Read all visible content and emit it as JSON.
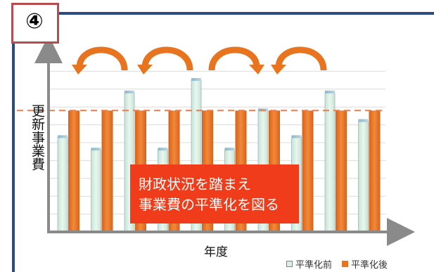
{
  "step_marker": "④",
  "note": {
    "line1": "財政状況を踏まえ",
    "line2": "事業費の平準化を図る"
  },
  "chart_data": {
    "type": "bar",
    "title": "",
    "xlabel": "年度",
    "ylabel": "更新事業費",
    "ylim": [
      0,
      10
    ],
    "grid": true,
    "legend_position": "bottom-right",
    "series": [
      {
        "name": "平準化前",
        "values": [
          5.3,
          4.6,
          7.8,
          4.6,
          8.5,
          4.6,
          6.8,
          5.3,
          7.8,
          6.2
        ],
        "color": "#dbeee3"
      },
      {
        "name": "平準化後",
        "values": [
          6.8,
          6.8,
          6.8,
          6.8,
          6.8,
          6.8,
          6.8,
          6.8,
          6.8,
          6.8
        ],
        "color": "#e8741f"
      }
    ],
    "reference_line": {
      "value": 6.8,
      "color": "#f07a4a",
      "style": "dashed"
    },
    "arrows_count": 4,
    "arrow_color": "#e8741f"
  }
}
